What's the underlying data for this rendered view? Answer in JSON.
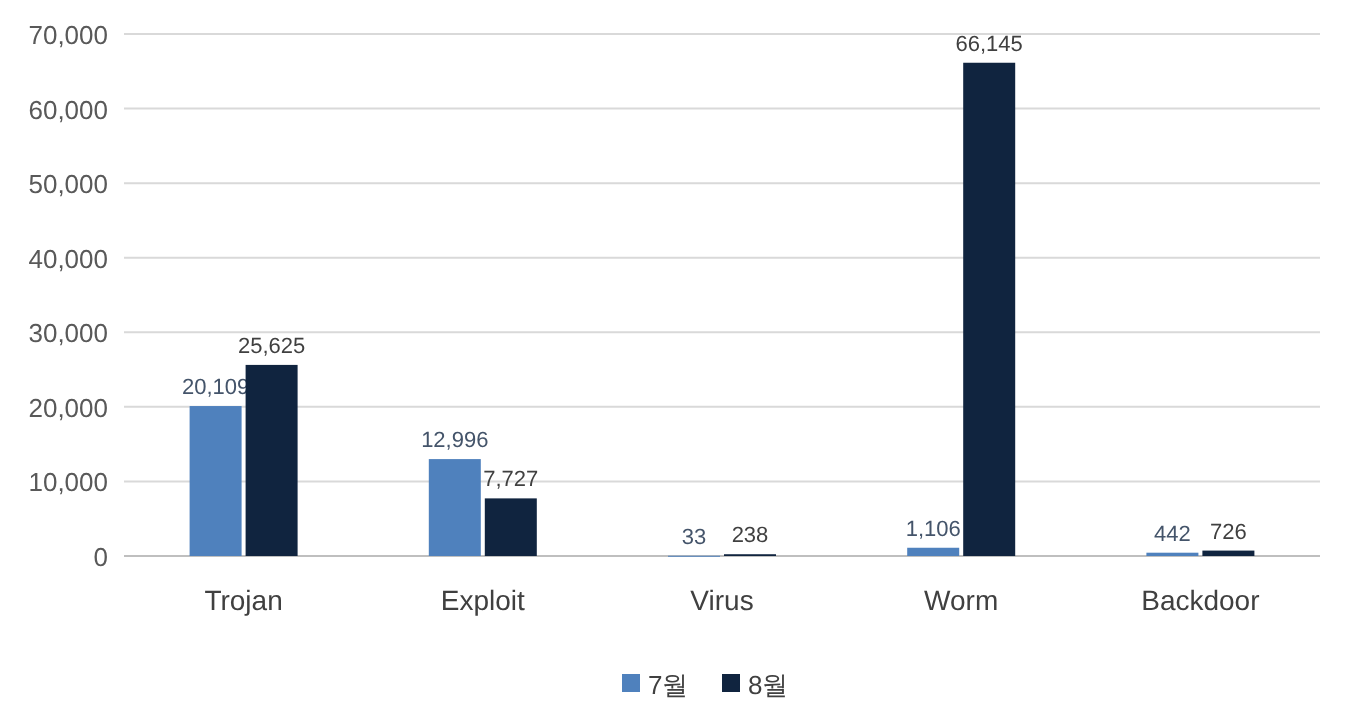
{
  "chart_data": {
    "type": "bar",
    "categories": [
      "Trojan",
      "Exploit",
      "Virus",
      "Worm",
      "Backdoor"
    ],
    "series": [
      {
        "name": "7월",
        "color": "#4f81bd",
        "values": [
          20109,
          12996,
          33,
          1106,
          442
        ],
        "value_labels": [
          "20,109",
          "12,996",
          "33",
          "1,106",
          "442"
        ]
      },
      {
        "name": "8월",
        "color": "#10243f",
        "values": [
          25625,
          7727,
          238,
          66145,
          726
        ],
        "value_labels": [
          "25,625",
          "7,727",
          "238",
          "66,145",
          "726"
        ]
      }
    ],
    "ylim": [
      0,
      70000
    ],
    "yticks": [
      {
        "value": 0,
        "label": "0"
      },
      {
        "value": 10000,
        "label": "10,000"
      },
      {
        "value": 20000,
        "label": "20,000"
      },
      {
        "value": 30000,
        "label": "30,000"
      },
      {
        "value": 40000,
        "label": "40,000"
      },
      {
        "value": 50000,
        "label": "50,000"
      },
      {
        "value": 60000,
        "label": "60,000"
      },
      {
        "value": 70000,
        "label": "70,000"
      }
    ],
    "grid": "y",
    "legend": "bottom"
  }
}
